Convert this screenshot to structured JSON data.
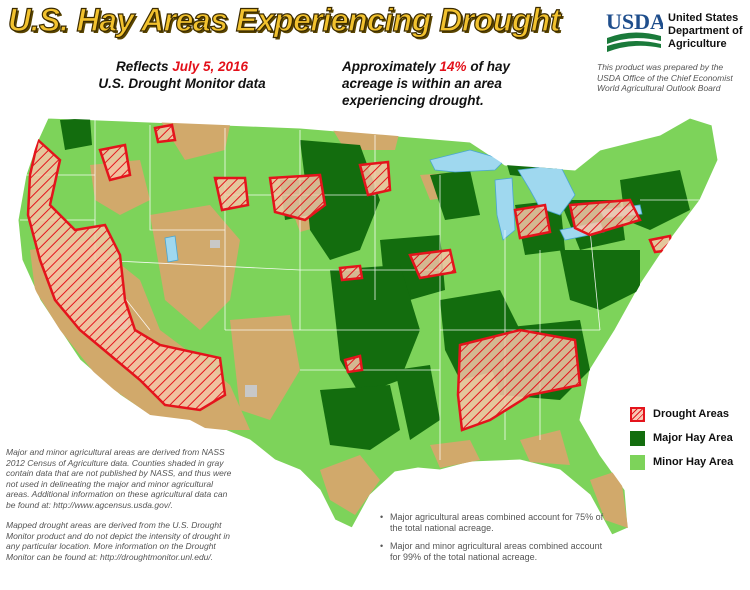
{
  "title": "U.S. Hay Areas Experiencing Drought",
  "subtitle_left": {
    "line1_prefix": "Reflects ",
    "date": "July 5, 2016",
    "line2": "U.S. Drought Monitor data"
  },
  "subtitle_mid": {
    "prefix": "Approximately ",
    "percent": "14%",
    "suffix": " of hay acreage is within an area experiencing drought."
  },
  "agency": {
    "logo_text": "USDA",
    "line1": "United States",
    "line2": "Department of",
    "line3": "Agriculture"
  },
  "credit": "This product was prepared by the USDA Office of the Chief Economist World Agricultural Outlook Board",
  "legend": {
    "items": [
      {
        "label": "Drought Areas"
      },
      {
        "label": "Major Hay Area"
      },
      {
        "label": "Minor Hay Area"
      }
    ]
  },
  "notes_left": [
    "Major and minor agricultural areas are derived from NASS 2012 Census of Agriculture data.  Counties shaded in gray contain data that are not published by NASS, and thus were not used in delineating the major and minor agricultural areas.  Additional information on these agricultural data can be found at:  http://www.agcensus.usda.gov/.",
    "Mapped drought areas are derived from the U.S. Drought Monitor product and do not depict the intensity of drought in any particular location.  More information on the Drought Monitor can be found at:  http://droughtmonitor.unl.edu/."
  ],
  "notes_right": [
    "Major agricultural areas combined account for 75% of the total national acreage.",
    "Major and minor agricultural areas combined account for 99% of the total national acreage."
  ],
  "bullet_char": "•",
  "colors": {
    "major_hay": "#136d0e",
    "minor_hay": "#7dd35a",
    "non_ag": "#d1a96b",
    "no_data": "#c8c8c8",
    "drought_outline": "#e4141c",
    "drought_fill": "#f8c7b3",
    "water": "#9fd8ef"
  }
}
